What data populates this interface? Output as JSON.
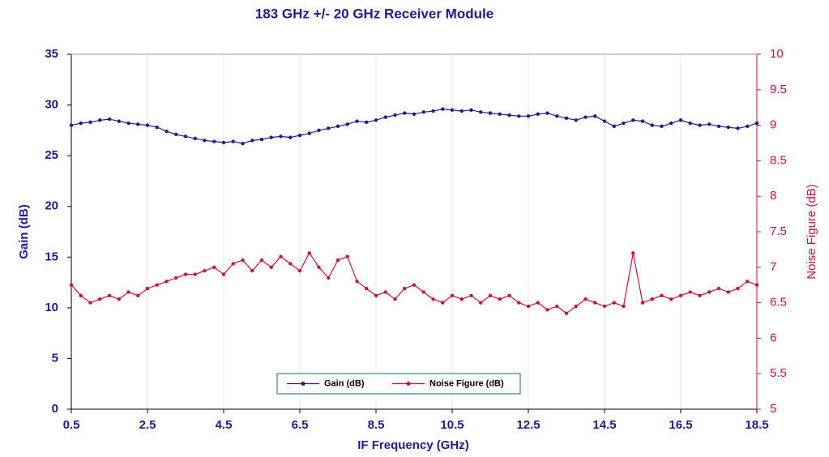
{
  "chart_data": {
    "type": "line",
    "title": "183 GHz +/- 20 GHz Receiver Module",
    "xlabel": "IF Frequency (GHz)",
    "ylabel": "Gain (dB)",
    "y2label": "Noise Figure (dB)",
    "x": [
      0.5,
      0.75,
      1.0,
      1.25,
      1.5,
      1.75,
      2.0,
      2.25,
      2.5,
      2.75,
      3.0,
      3.25,
      3.5,
      3.75,
      4.0,
      4.25,
      4.5,
      4.75,
      5.0,
      5.25,
      5.5,
      5.75,
      6.0,
      6.25,
      6.5,
      6.75,
      7.0,
      7.25,
      7.5,
      7.75,
      8.0,
      8.25,
      8.5,
      8.75,
      9.0,
      9.25,
      9.5,
      9.75,
      10.0,
      10.25,
      10.5,
      10.75,
      11.0,
      11.25,
      11.5,
      11.75,
      12.0,
      12.25,
      12.5,
      12.75,
      13.0,
      13.25,
      13.5,
      13.75,
      14.0,
      14.25,
      14.5,
      14.75,
      15.0,
      15.25,
      15.5,
      15.75,
      16.0,
      16.25,
      16.5,
      16.75,
      17.0,
      17.25,
      17.5,
      17.75,
      18.0,
      18.25,
      18.5
    ],
    "series": [
      {
        "name": "Gain (dB)",
        "color": "#1c1c8f",
        "axis": "y",
        "values": [
          28.0,
          28.2,
          28.3,
          28.5,
          28.6,
          28.4,
          28.2,
          28.1,
          28.0,
          27.8,
          27.4,
          27.1,
          26.9,
          26.7,
          26.5,
          26.4,
          26.3,
          26.4,
          26.2,
          26.5,
          26.6,
          26.8,
          26.9,
          26.8,
          27.0,
          27.2,
          27.5,
          27.7,
          27.9,
          28.1,
          28.4,
          28.3,
          28.5,
          28.8,
          29.0,
          29.2,
          29.1,
          29.3,
          29.4,
          29.6,
          29.5,
          29.4,
          29.5,
          29.3,
          29.2,
          29.1,
          29.0,
          28.9,
          28.9,
          29.1,
          29.2,
          28.9,
          28.7,
          28.5,
          28.8,
          28.9,
          28.4,
          27.9,
          28.2,
          28.5,
          28.4,
          28.0,
          27.9,
          28.2,
          28.5,
          28.2,
          28.0,
          28.1,
          27.9,
          27.8,
          27.7,
          27.9,
          28.2
        ]
      },
      {
        "name": "Noise Figure (dB)",
        "color": "#c8103c",
        "axis": "y2",
        "values": [
          6.75,
          6.6,
          6.5,
          6.55,
          6.6,
          6.55,
          6.65,
          6.6,
          6.7,
          6.75,
          6.8,
          6.85,
          6.9,
          6.9,
          6.95,
          7.0,
          6.9,
          7.05,
          7.1,
          6.95,
          7.1,
          7.0,
          7.15,
          7.05,
          6.95,
          7.2,
          7.0,
          6.85,
          7.1,
          7.15,
          6.8,
          6.7,
          6.6,
          6.65,
          6.55,
          6.7,
          6.75,
          6.65,
          6.55,
          6.5,
          6.6,
          6.55,
          6.6,
          6.5,
          6.6,
          6.55,
          6.6,
          6.5,
          6.45,
          6.5,
          6.4,
          6.45,
          6.35,
          6.45,
          6.55,
          6.5,
          6.45,
          6.5,
          6.45,
          7.2,
          6.5,
          6.55,
          6.6,
          6.55,
          6.6,
          6.65,
          6.6,
          6.65,
          6.7,
          6.65,
          6.7,
          6.8,
          6.75
        ]
      }
    ],
    "xlim": [
      0.5,
      18.5
    ],
    "xticks": [
      0.5,
      2.5,
      4.5,
      6.5,
      8.5,
      10.5,
      12.5,
      14.5,
      16.5,
      18.5
    ],
    "ylim": [
      0,
      35
    ],
    "yticks": [
      0,
      5,
      10,
      15,
      20,
      25,
      30,
      35
    ],
    "y2lim": [
      5,
      10
    ],
    "y2ticks": [
      5,
      5.5,
      6,
      6.5,
      7,
      7.5,
      8,
      8.5,
      9,
      9.5,
      10
    ],
    "grid": true,
    "legend": "bottom"
  }
}
